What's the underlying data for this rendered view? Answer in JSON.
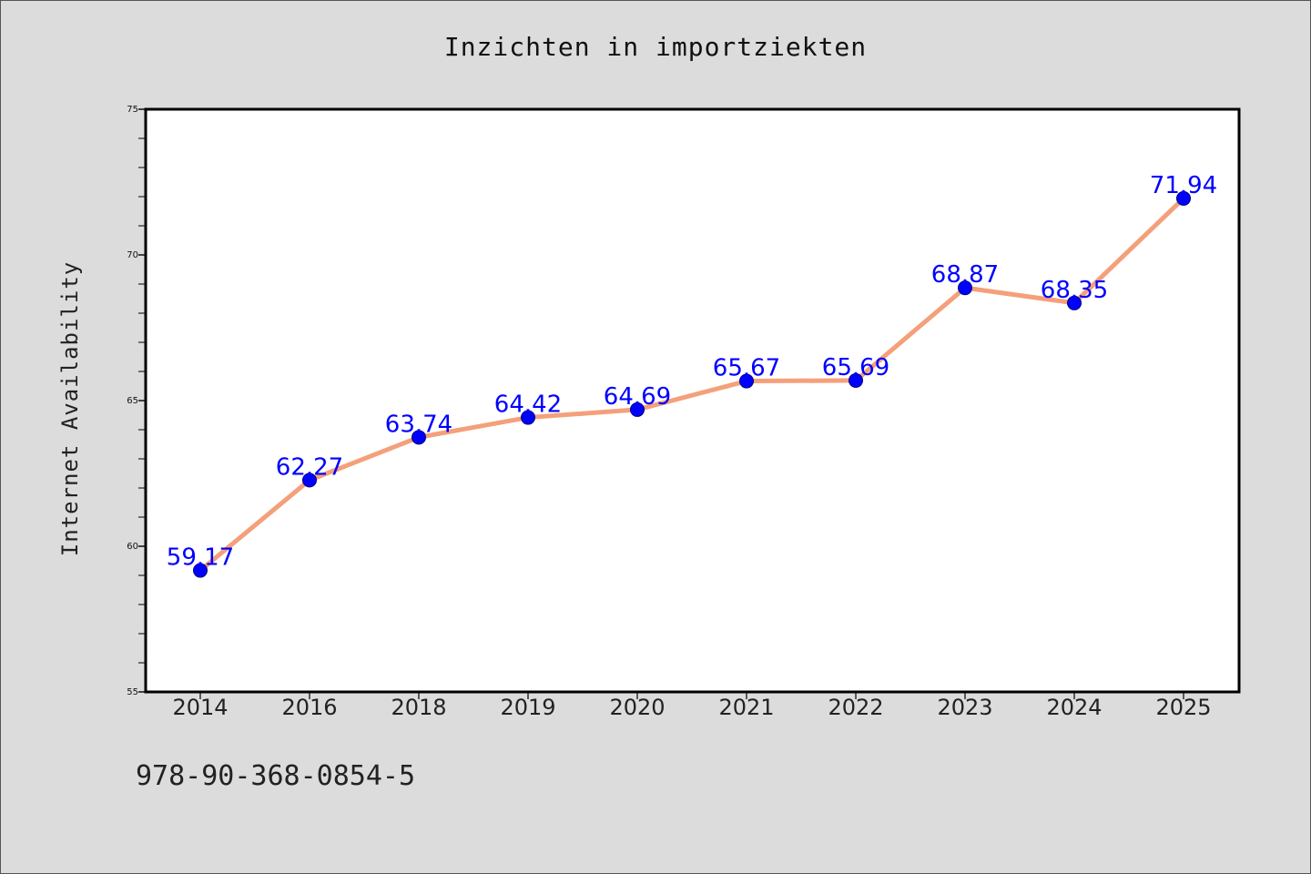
{
  "colors": {
    "background": "#dcdcdc",
    "plot_area": "#ffffff",
    "line": "#f4a07a",
    "marker": "#0000ff",
    "data_label": "#0000ff"
  },
  "footer": {
    "code": "978-90-368-0854-5"
  },
  "chart_data": {
    "type": "line",
    "title": "Inzichten in importziekten",
    "xlabel": "",
    "ylabel": "Internet Availability",
    "categories": [
      "2014",
      "2016",
      "2018",
      "2019",
      "2020",
      "2021",
      "2022",
      "2023",
      "2024",
      "2025"
    ],
    "series": [
      {
        "values": [
          59.17,
          62.27,
          63.74,
          64.42,
          64.69,
          65.67,
          65.69,
          68.87,
          68.35,
          71.94
        ]
      }
    ],
    "data_labels": [
      "59.17",
      "62.27",
      "63.74",
      "64.42",
      "64.69",
      "65.67",
      "65.69",
      "68.87",
      "68.35",
      "71.94"
    ],
    "ylim": [
      55,
      75
    ],
    "y_ticks": [
      55,
      60,
      65,
      70,
      75
    ],
    "y_minor_step": 1,
    "grid": false,
    "legend": "none"
  }
}
